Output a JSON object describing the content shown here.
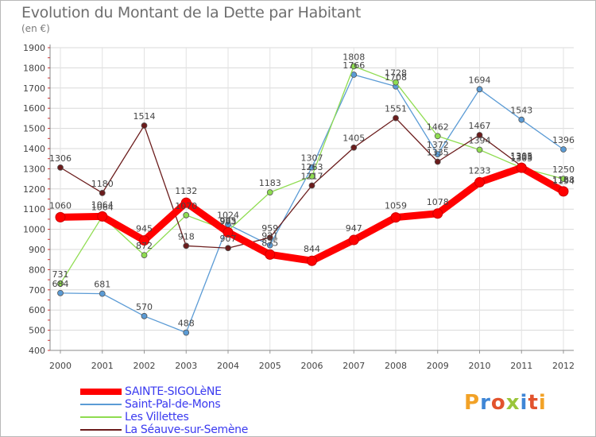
{
  "title": "Evolution du Montant de la Dette par Habitant",
  "subtitle": "(en €)",
  "brand": "Proxiti",
  "chart_data": {
    "type": "line",
    "title": "Evolution du Montant de la Dette par Habitant",
    "subtitle": "(en €)",
    "xlabel": "",
    "ylabel": "",
    "categories": [
      "2000",
      "2001",
      "2002",
      "2003",
      "2004",
      "2005",
      "2006",
      "2007",
      "2008",
      "2009",
      "2010",
      "2011",
      "2012"
    ],
    "ylim": [
      400,
      1900
    ],
    "yticks": [
      400,
      500,
      600,
      700,
      800,
      900,
      1000,
      1100,
      1200,
      1300,
      1400,
      1500,
      1600,
      1700,
      1800,
      1900
    ],
    "grid": true,
    "legend_position": "bottom-left",
    "series": [
      {
        "name": "SAINTE-SIGOLèNE",
        "color": "#ff0000",
        "values": [
          1060,
          1064,
          945,
          1132,
          985,
          875,
          844,
          947,
          1059,
          1078,
          1233,
          1305,
          1188
        ]
      },
      {
        "name": "Saint-Pal-de-Mons",
        "color": "#5b9bd5",
        "values": [
          684,
          681,
          570,
          488,
          1024,
          921,
          1307,
          1766,
          1708,
          1372,
          1694,
          1543,
          1396
        ]
      },
      {
        "name": "Les Villettes",
        "color": "#8fdc50",
        "values": [
          731,
          1064,
          872,
          1070,
          993,
          1183,
          1263,
          1808,
          1728,
          1462,
          1394,
          1305,
          1250
        ]
      },
      {
        "name": "La Séauve-sur-Semène",
        "color": "#6b1c1c",
        "values": [
          1306,
          1180,
          1514,
          918,
          907,
          959,
          1217,
          1405,
          1551,
          1335,
          1467,
          1313,
          1194
        ]
      }
    ]
  }
}
